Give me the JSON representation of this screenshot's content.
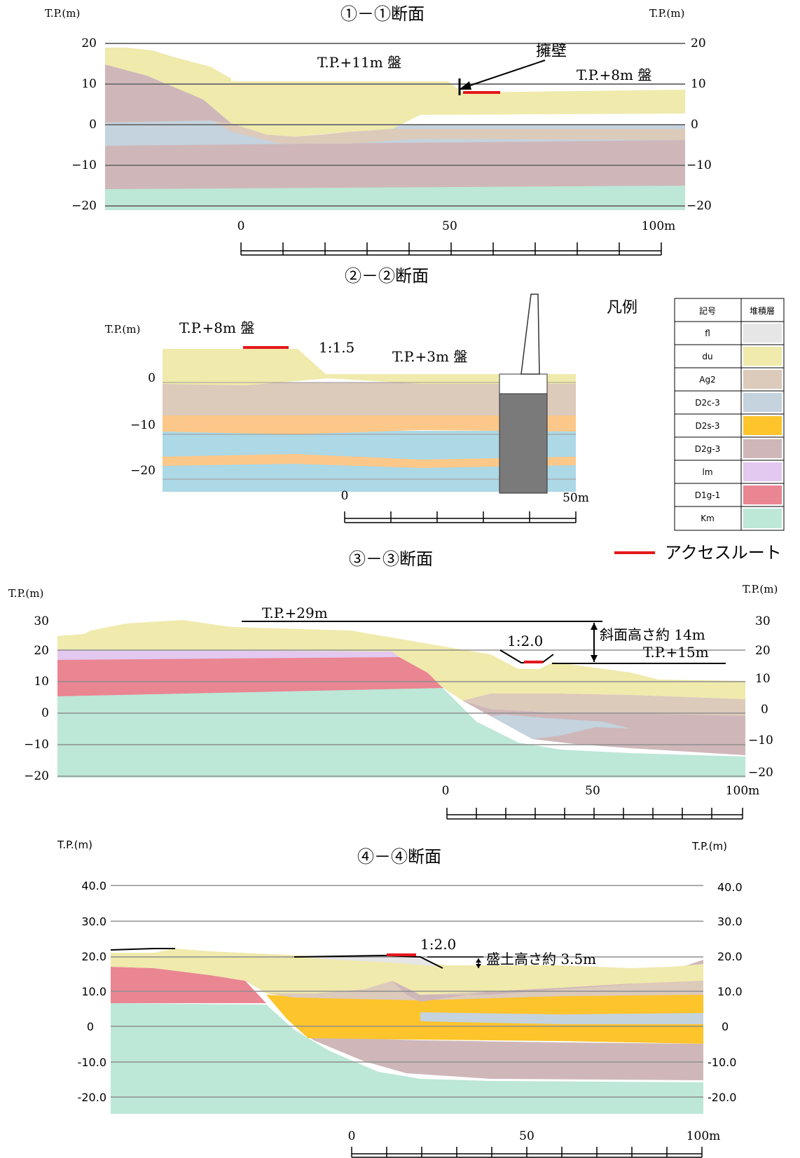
{
  "unit_label": "T.P.(m)",
  "colors": {
    "fl": "#e6e6e6",
    "du": "#f0eaac",
    "Ag2": "#dccabb",
    "D2c3": "#c4d3de",
    "D2s3": "#fdc42b",
    "D2g3": "#cfb7b9",
    "lm": "#e3c8ef",
    "D1g1": "#ea8592",
    "Km": "#bde7d7",
    "access": "#e3171c",
    "s2_orange": "#fcc889",
    "s2_blue": "#add8e5"
  },
  "section1": {
    "title": "①－①断面",
    "y_labels_left": [
      "20",
      "10",
      "0",
      "−10",
      "−20"
    ],
    "y_labels_right": [
      "20",
      "10",
      "0",
      "−10",
      "−20"
    ],
    "x_labels": [
      "0",
      "50",
      "100m"
    ],
    "annotations": {
      "platform11": "T.P.+11m 盤",
      "retaining_wall": "擁壁",
      "platform8": "T.P.+8m 盤"
    }
  },
  "section2": {
    "title": "②－②断面",
    "y_labels": [
      "0",
      "−10",
      "−20"
    ],
    "x_labels": [
      "0",
      "50m"
    ],
    "annotations": {
      "platform8": "T.P.+8m 盤",
      "slope": "1:1.5",
      "platform3": "T.P.+3m 盤"
    }
  },
  "legend": {
    "title": "凡例",
    "header_symbol": "記号",
    "header_layer": "堆積層",
    "items": [
      {
        "symbol": "fl",
        "color": "#e6e6e6"
      },
      {
        "symbol": "du",
        "color": "#f0eaac"
      },
      {
        "symbol": "Ag2",
        "color": "#dccabb"
      },
      {
        "symbol": "D2c-3",
        "color": "#c4d3de"
      },
      {
        "symbol": "D2s-3",
        "color": "#fdc42b"
      },
      {
        "symbol": "D2g-3",
        "color": "#cfb7b9"
      },
      {
        "symbol": "lm",
        "color": "#e3c8ef"
      },
      {
        "symbol": "D1g-1",
        "color": "#ea8592"
      },
      {
        "symbol": "Km",
        "color": "#bde7d7"
      }
    ],
    "access_route": "アクセスルート"
  },
  "section3": {
    "title": "③－③断面",
    "y_labels_left": [
      "30",
      "20",
      "10",
      "0",
      "−10",
      "−20"
    ],
    "y_labels_right": [
      "30",
      "20",
      "10",
      "0",
      "−10",
      "−20"
    ],
    "x_labels": [
      "0",
      "50",
      "100m"
    ],
    "annotations": {
      "tp29": "T.P.+29m",
      "slope": "1:2.0",
      "slope_height": "斜面高さ約 14m",
      "tp15": "T.P.+15m"
    }
  },
  "section4": {
    "title": "④－④断面",
    "y_labels_left": [
      "40.0",
      "30.0",
      "20.0",
      "10.0",
      "0",
      "-10.0",
      "-20.0"
    ],
    "y_labels_right": [
      "40.0",
      "30.0",
      "20.0",
      "10.0",
      "0",
      "-10.0",
      "-20.0"
    ],
    "x_labels": [
      "0",
      "50",
      "100m"
    ],
    "annotations": {
      "slope": "1:2.0",
      "fill_height": "盛土高さ約 3.5m"
    }
  }
}
